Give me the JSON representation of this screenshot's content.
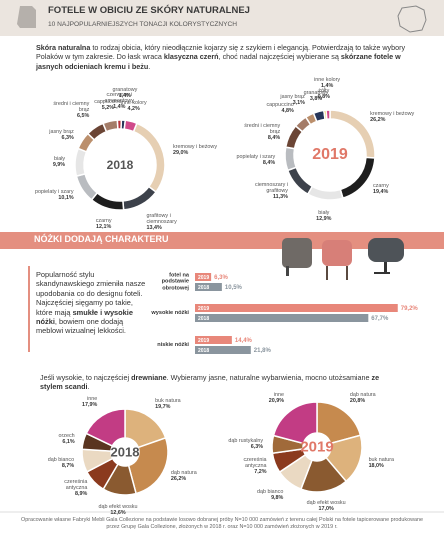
{
  "header": {
    "title": "FOTELE W OBICIU ZE SKÓRY NATURALNEJ",
    "subtitle": "10 NAJPOPULARNIEJSZYCH TONACJI KOLORYSTYCZNYCH"
  },
  "intro": [
    "Skóra naturalna",
    " to rodzaj obicia, który nieodłącznie kojarzy się z szykiem i elegancją. Potwierdzają to także wybory Polaków w tym zakresie. Do łask wraca ",
    "klasyczna czerń",
    ", choć nadal najczęściej wybierane są ",
    "skórzane fotele w jasnych odcieniach kremu i beżu",
    "."
  ],
  "section2": {
    "title": "NÓŻKI DODAJĄ CHARAKTERU",
    "text": [
      "Popularność stylu skandynawskiego zmieniła nasze upodobania co do designu foteli. Najczęściej sięgamy po takie, które mają ",
      "smukłe i wysokie nóżki",
      ", bowiem one dodają meblowi wizualnej lekkości."
    ]
  },
  "section3": {
    "text": [
      "Jeśli wysokie, to najczęściej ",
      "drewniane",
      ". Wybieramy jasne, naturalne wybarwienia, mocno utożsamiane ",
      "ze stylem scandi",
      "."
    ]
  },
  "footer": "Opracowanie własne Fabryki Mebli Gala Collezione na podstawie losowo dobranej próby N=10 000 zamówień z terenu całej Polski na fotele tapicerowane produkowane przez Grupę Gala Collezione, złożonych w 2018 r. oraz N=10 000 zamówień złożonych w 2019 r.",
  "chart_data": [
    {
      "type": "donut",
      "title": "2018",
      "categories": [
        "kremowy i beżowy",
        "grafitowy i ciemnoszary",
        "czarny",
        "popielaty i szary",
        "biały",
        "jasny brąz",
        "średni i ciemny brąz",
        "cappuccino",
        "czerwony i amarantowy",
        "granatowy",
        "inne kolory"
      ],
      "values": [
        29.0,
        13.4,
        12.1,
        10.1,
        9.9,
        6.3,
        6.5,
        5.2,
        1.4,
        1.4,
        4.2
      ],
      "value_labels": [
        "29,0%",
        "13,4%",
        "12,1%",
        "10,1%",
        "9,9%",
        "6,3%",
        "6,5%",
        "5,2%",
        "1,4%",
        "1,4%",
        "4,2%"
      ],
      "colors": [
        "#e6cfb3",
        "#3d424b",
        "#1e1e1e",
        "#b9bcc0",
        "#e6e6e6",
        "#bb8f6c",
        "#6b4535",
        "#a47c68",
        "#b8323a",
        "#27365a",
        "#d04a8a"
      ]
    },
    {
      "type": "donut",
      "title": "2019",
      "categories": [
        "kremowy i beżowy",
        "czarny",
        "biały",
        "ciemnoszary i grafitowy",
        "popielaty i szary",
        "średni i ciemny brąz",
        "cappuccino",
        "jasny brąz",
        "granatowy",
        "żółty",
        "inne kolory"
      ],
      "values": [
        26.2,
        19.4,
        12.9,
        11.3,
        8.4,
        8.4,
        4.8,
        3.1,
        3.8,
        0.8,
        1.4
      ],
      "value_labels": [
        "26,2%",
        "19,4%",
        "12,9%",
        "11,3%",
        "8,4%",
        "8,4%",
        "4,8%",
        "3,1%",
        "3,8%",
        "0,8%",
        "1,4%"
      ],
      "colors": [
        "#e6cfb3",
        "#1e1e1e",
        "#e6e6e6",
        "#3d424b",
        "#b9bcc0",
        "#6b4535",
        "#a47c68",
        "#bb8f6c",
        "#27365a",
        "#e8c53a",
        "#d04a8a"
      ]
    },
    {
      "type": "bar",
      "categories": [
        "fotel na podstawie obrotowej",
        "wysokie nóżki",
        "niskie nóżki"
      ],
      "series": [
        {
          "name": "2019",
          "color": "#e8877a",
          "values": [
            6.3,
            79.2,
            14.4
          ],
          "value_labels": [
            "6,3%",
            "79,2%",
            "14,4%"
          ]
        },
        {
          "name": "2018",
          "color": "#8a959e",
          "values": [
            10.5,
            67.7,
            21.8
          ],
          "value_labels": [
            "10,5%",
            "67,7%",
            "21,8%"
          ]
        }
      ]
    },
    {
      "type": "donut",
      "title": "2018",
      "categories": [
        "buk natura",
        "dąb natura",
        "dąb efekt wosku",
        "czereśnia antyczna",
        "dąb bianco",
        "orzech",
        "inne"
      ],
      "values": [
        19.7,
        26.2,
        12.6,
        8.9,
        8.7,
        6.1,
        17.9
      ],
      "value_labels": [
        "19,7%",
        "26,2%",
        "12,6%",
        "8,9%",
        "8,7%",
        "6,1%",
        "17,9%"
      ],
      "colors": [
        "#ddb27c",
        "#c68a4e",
        "#8a5a30",
        "#8b3a1e",
        "#ead9c2",
        "#5a3520",
        "#c23c84"
      ]
    },
    {
      "type": "donut",
      "title": "2019",
      "categories": [
        "dąb natura",
        "buk natura",
        "dąb efekt wosku",
        "dąb bianco",
        "czereśnia antyczna",
        "dąb rustykalny",
        "inne"
      ],
      "values": [
        20.8,
        18.0,
        17.0,
        9.8,
        7.2,
        6.3,
        20.9
      ],
      "value_labels": [
        "20,8%",
        "18,0%",
        "17,0%",
        "9,8%",
        "7,2%",
        "6,3%",
        "20,9%"
      ],
      "colors": [
        "#c68a4e",
        "#ddb27c",
        "#8a5a30",
        "#ead9c2",
        "#8b3a1e",
        "#a06a3a",
        "#c23c84"
      ]
    }
  ]
}
